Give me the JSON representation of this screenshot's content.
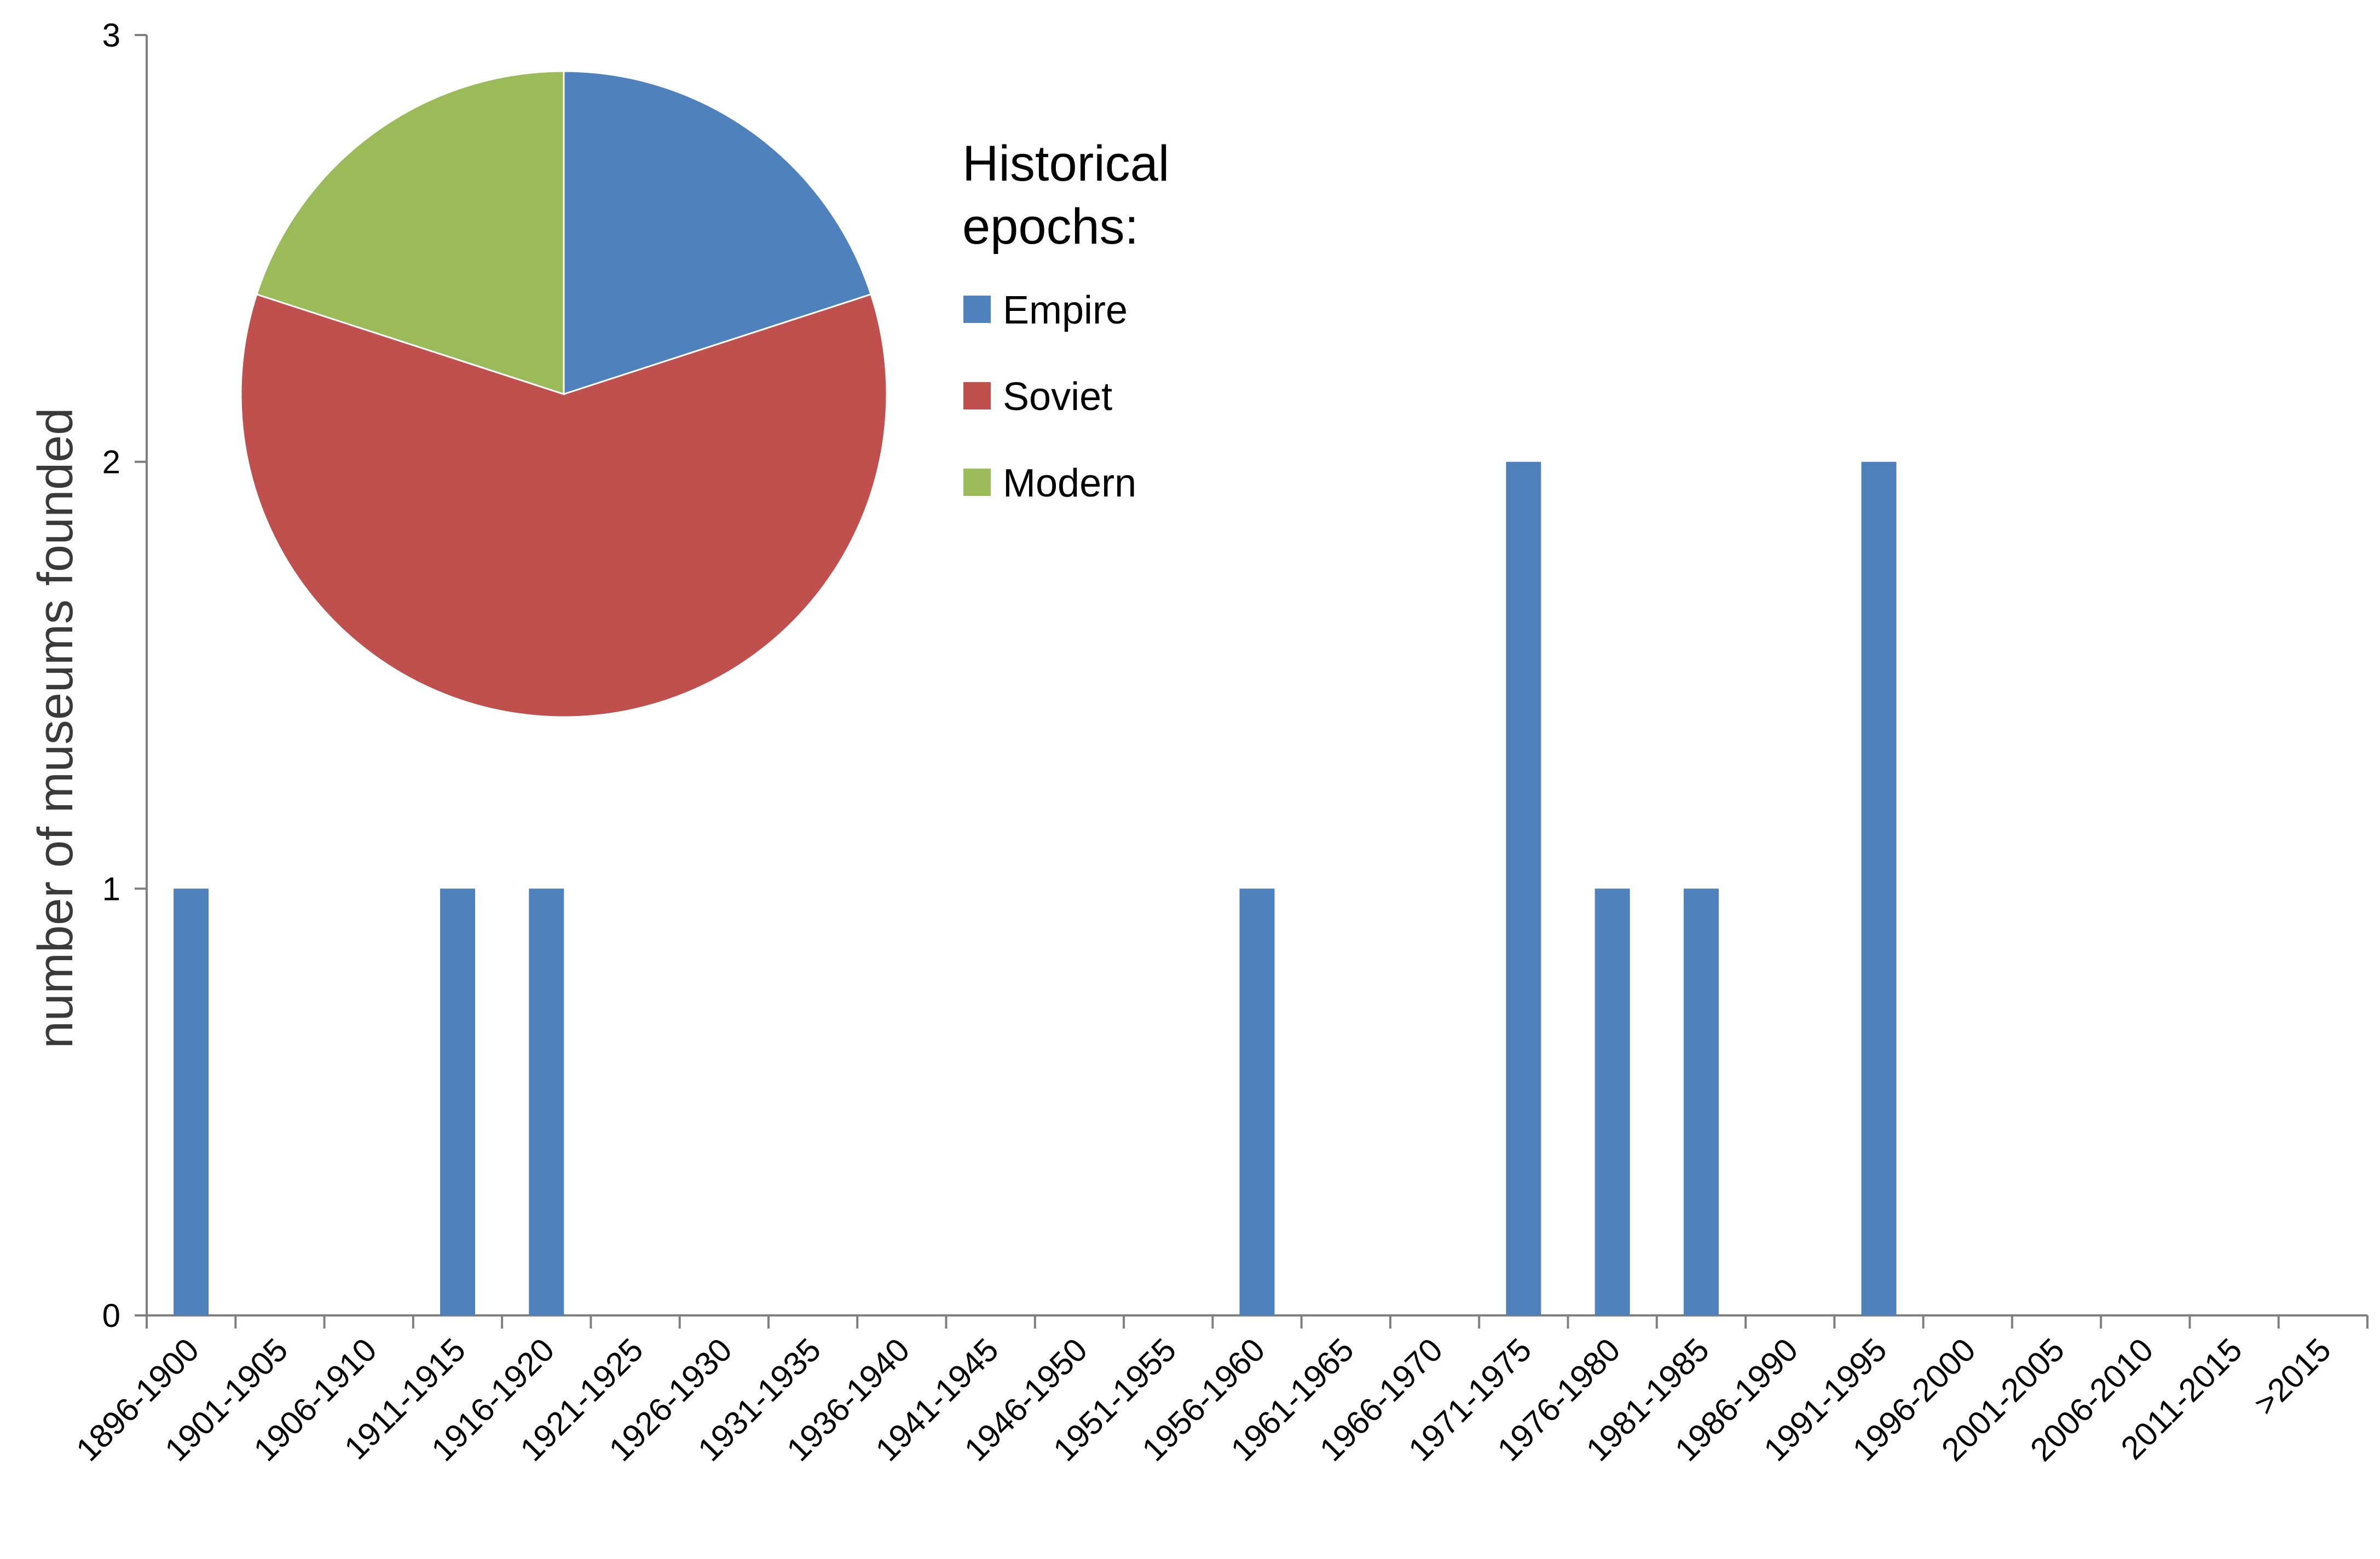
{
  "colors": {
    "bar": "#4f81bd",
    "axis": "#7f7f7f",
    "empire": "#4f81bd",
    "soviet": "#c0504d",
    "modern": "#9bbb59",
    "pie_border": "#ffffff"
  },
  "chart_data": [
    {
      "type": "bar",
      "title": "",
      "xlabel": "",
      "ylabel": "number of museums founded",
      "ylim": [
        0,
        3
      ],
      "y_ticks": [
        0,
        1,
        2,
        3
      ],
      "y_tick_labels": [
        "0",
        "1",
        "2",
        "3"
      ],
      "grid": false,
      "categories": [
        "1896-1900",
        "1901-1905",
        "1906-1910",
        "1911-1915",
        "1916-1920",
        "1921-1925",
        "1926-1930",
        "1931-1935",
        "1936-1940",
        "1941-1945",
        "1946-1950",
        "1951-1955",
        "1956-1960",
        "1961-1965",
        "1966-1970",
        "1971-1975",
        "1976-1980",
        "1981-1985",
        "1986-1990",
        "1991-1995",
        "1996-2000",
        "2001-2005",
        "2006-2010",
        "2011-2015",
        ">2015"
      ],
      "values": [
        1,
        0,
        0,
        1,
        1,
        0,
        0,
        0,
        0,
        0,
        0,
        0,
        1,
        0,
        0,
        2,
        1,
        1,
        0,
        2,
        0,
        0,
        0,
        0,
        0
      ]
    },
    {
      "type": "pie",
      "legend_title": "Historical epochs:",
      "legend_placement": "right of pie",
      "labels": [
        "Empire",
        "Soviet",
        "Modern"
      ],
      "values": [
        2,
        6,
        2
      ]
    }
  ]
}
